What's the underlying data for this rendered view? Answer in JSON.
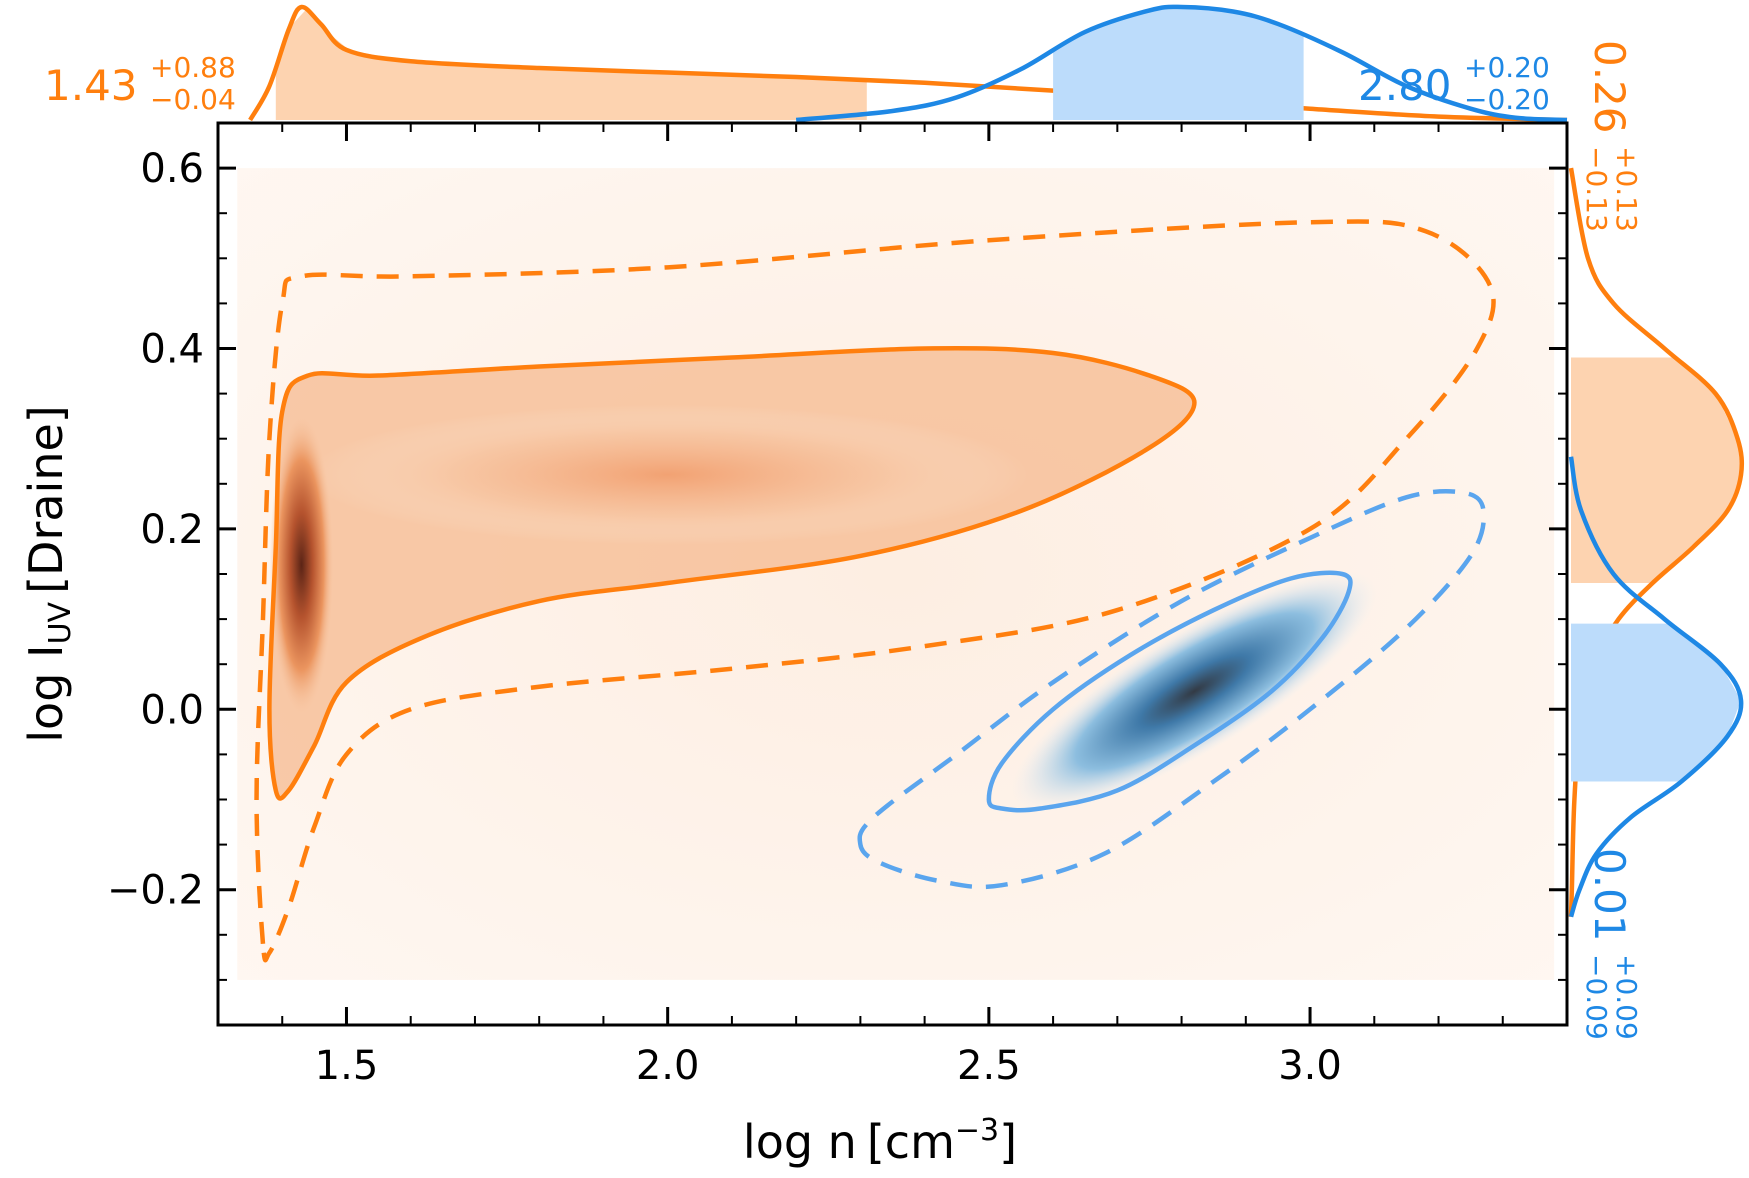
{
  "chart_data": {
    "type": "corner-density",
    "xlabel": {
      "main": "log n",
      "unit_open": "[cm",
      "unit_exp": "−3",
      "unit_close": "]"
    },
    "ylabel": {
      "main": "log I",
      "sub": "UV",
      "unit": "[Draine]"
    },
    "xlim": [
      1.3,
      3.4
    ],
    "ylim": [
      -0.35,
      0.65
    ],
    "xticks": [
      1.5,
      2.0,
      2.5,
      3.0
    ],
    "xtick_labels": [
      "1.5",
      "2.0",
      "2.5",
      "3.0"
    ],
    "yticks": [
      -0.2,
      0.0,
      0.2,
      0.4,
      0.6
    ],
    "ytick_labels": [
      "−0.2",
      "0.0",
      "0.2",
      "0.4",
      "0.6"
    ],
    "grid": false,
    "colors": {
      "orange": "#ff7f0e",
      "orange_fill": "#fdd3b0",
      "blue": "#1e88e5",
      "blue_contour": "#5aa5ee",
      "blue_fill": "#bcdcfb",
      "axis": "#000000"
    },
    "series": [
      {
        "color_key": "orange",
        "density_peak": {
          "x": 1.43,
          "y": 0.16
        },
        "contours": {
          "inner": [
            [
              1.39,
              -0.09
            ],
            [
              1.38,
              0.0
            ],
            [
              1.39,
              0.18
            ],
            [
              1.4,
              0.33
            ],
            [
              1.44,
              0.37
            ],
            [
              1.55,
              0.37
            ],
            [
              1.8,
              0.38
            ],
            [
              2.1,
              0.39
            ],
            [
              2.4,
              0.4
            ],
            [
              2.6,
              0.395
            ],
            [
              2.75,
              0.37
            ],
            [
              2.82,
              0.34
            ],
            [
              2.75,
              0.29
            ],
            [
              2.55,
              0.22
            ],
            [
              2.3,
              0.17
            ],
            [
              2.0,
              0.14
            ],
            [
              1.8,
              0.12
            ],
            [
              1.62,
              0.08
            ],
            [
              1.5,
              0.03
            ],
            [
              1.45,
              -0.04
            ],
            [
              1.41,
              -0.09
            ]
          ],
          "outer": [
            [
              1.37,
              -0.26
            ],
            [
              1.36,
              -0.1
            ],
            [
              1.37,
              0.1
            ],
            [
              1.38,
              0.3
            ],
            [
              1.4,
              0.45
            ],
            [
              1.43,
              0.48
            ],
            [
              1.6,
              0.48
            ],
            [
              2.0,
              0.49
            ],
            [
              2.5,
              0.52
            ],
            [
              3.0,
              0.54
            ],
            [
              3.18,
              0.53
            ],
            [
              3.28,
              0.47
            ],
            [
              3.26,
              0.4
            ],
            [
              3.15,
              0.3
            ],
            [
              3.0,
              0.2
            ],
            [
              2.7,
              0.11
            ],
            [
              2.4,
              0.07
            ],
            [
              2.1,
              0.045
            ],
            [
              1.8,
              0.025
            ],
            [
              1.6,
              0.0
            ],
            [
              1.5,
              -0.05
            ],
            [
              1.45,
              -0.13
            ],
            [
              1.41,
              -0.22
            ],
            [
              1.38,
              -0.27
            ]
          ]
        },
        "marginal_x": {
          "median": 1.43,
          "plus": "+0.88",
          "minus": "−0.04",
          "label": "1.43",
          "band": [
            1.39,
            2.31
          ],
          "curve": [
            [
              1.35,
              0.0
            ],
            [
              1.38,
              0.3
            ],
            [
              1.41,
              0.8
            ],
            [
              1.43,
              1.0
            ],
            [
              1.46,
              0.85
            ],
            [
              1.5,
              0.62
            ],
            [
              1.6,
              0.52
            ],
            [
              1.8,
              0.46
            ],
            [
              2.0,
              0.42
            ],
            [
              2.2,
              0.38
            ],
            [
              2.4,
              0.33
            ],
            [
              2.6,
              0.26
            ],
            [
              2.8,
              0.18
            ],
            [
              3.0,
              0.1
            ],
            [
              3.2,
              0.03
            ],
            [
              3.4,
              0.0
            ]
          ]
        },
        "marginal_y": {
          "median": 0.26,
          "plus": "+0.13",
          "minus": "−0.13",
          "label": "0.26",
          "band": [
            0.14,
            0.39
          ],
          "curve": [
            [
              0.6,
              0.0
            ],
            [
              0.5,
              0.1
            ],
            [
              0.45,
              0.25
            ],
            [
              0.4,
              0.55
            ],
            [
              0.35,
              0.85
            ],
            [
              0.3,
              0.98
            ],
            [
              0.26,
              1.0
            ],
            [
              0.22,
              0.92
            ],
            [
              0.18,
              0.72
            ],
            [
              0.14,
              0.48
            ],
            [
              0.1,
              0.28
            ],
            [
              0.05,
              0.13
            ],
            [
              0.0,
              0.06
            ],
            [
              -0.1,
              0.02
            ],
            [
              -0.2,
              0.005
            ],
            [
              -0.23,
              0.0
            ]
          ]
        }
      },
      {
        "color_key": "blue",
        "density_peak": {
          "x": 2.82,
          "y": 0.02
        },
        "contours": {
          "inner": [
            [
              2.5,
              -0.1
            ],
            [
              2.52,
              -0.06
            ],
            [
              2.6,
              0.0
            ],
            [
              2.72,
              0.06
            ],
            [
              2.85,
              0.11
            ],
            [
              2.97,
              0.145
            ],
            [
              3.05,
              0.15
            ],
            [
              3.06,
              0.13
            ],
            [
              3.02,
              0.08
            ],
            [
              2.94,
              0.02
            ],
            [
              2.82,
              -0.04
            ],
            [
              2.7,
              -0.09
            ],
            [
              2.58,
              -0.11
            ],
            [
              2.52,
              -0.11
            ]
          ],
          "outer": [
            [
              2.3,
              -0.15
            ],
            [
              2.32,
              -0.12
            ],
            [
              2.45,
              -0.05
            ],
            [
              2.6,
              0.03
            ],
            [
              2.8,
              0.12
            ],
            [
              3.0,
              0.19
            ],
            [
              3.15,
              0.235
            ],
            [
              3.24,
              0.24
            ],
            [
              3.27,
              0.22
            ],
            [
              3.25,
              0.17
            ],
            [
              3.15,
              0.09
            ],
            [
              3.0,
              0.0
            ],
            [
              2.85,
              -0.08
            ],
            [
              2.68,
              -0.16
            ],
            [
              2.52,
              -0.195
            ],
            [
              2.42,
              -0.19
            ],
            [
              2.33,
              -0.17
            ]
          ]
        },
        "marginal_x": {
          "median": 2.8,
          "plus": "+0.20",
          "minus": "−0.20",
          "label": "2.80",
          "band": [
            2.6,
            2.99
          ],
          "curve": [
            [
              2.2,
              0.0
            ],
            [
              2.35,
              0.08
            ],
            [
              2.45,
              0.2
            ],
            [
              2.55,
              0.45
            ],
            [
              2.65,
              0.78
            ],
            [
              2.75,
              0.97
            ],
            [
              2.8,
              1.0
            ],
            [
              2.88,
              0.96
            ],
            [
              2.95,
              0.85
            ],
            [
              3.05,
              0.6
            ],
            [
              3.15,
              0.3
            ],
            [
              3.25,
              0.1
            ],
            [
              3.32,
              0.02
            ],
            [
              3.4,
              0.0
            ]
          ]
        },
        "marginal_y": {
          "median": 0.01,
          "plus": "+0.09",
          "minus": "−0.09",
          "label": "0.01",
          "band": [
            -0.08,
            0.095
          ],
          "curve": [
            [
              0.28,
              0.0
            ],
            [
              0.22,
              0.06
            ],
            [
              0.15,
              0.25
            ],
            [
              0.1,
              0.55
            ],
            [
              0.05,
              0.88
            ],
            [
              0.01,
              1.0
            ],
            [
              -0.03,
              0.92
            ],
            [
              -0.08,
              0.65
            ],
            [
              -0.12,
              0.35
            ],
            [
              -0.16,
              0.15
            ],
            [
              -0.2,
              0.05
            ],
            [
              -0.23,
              0.0
            ]
          ]
        }
      }
    ]
  }
}
